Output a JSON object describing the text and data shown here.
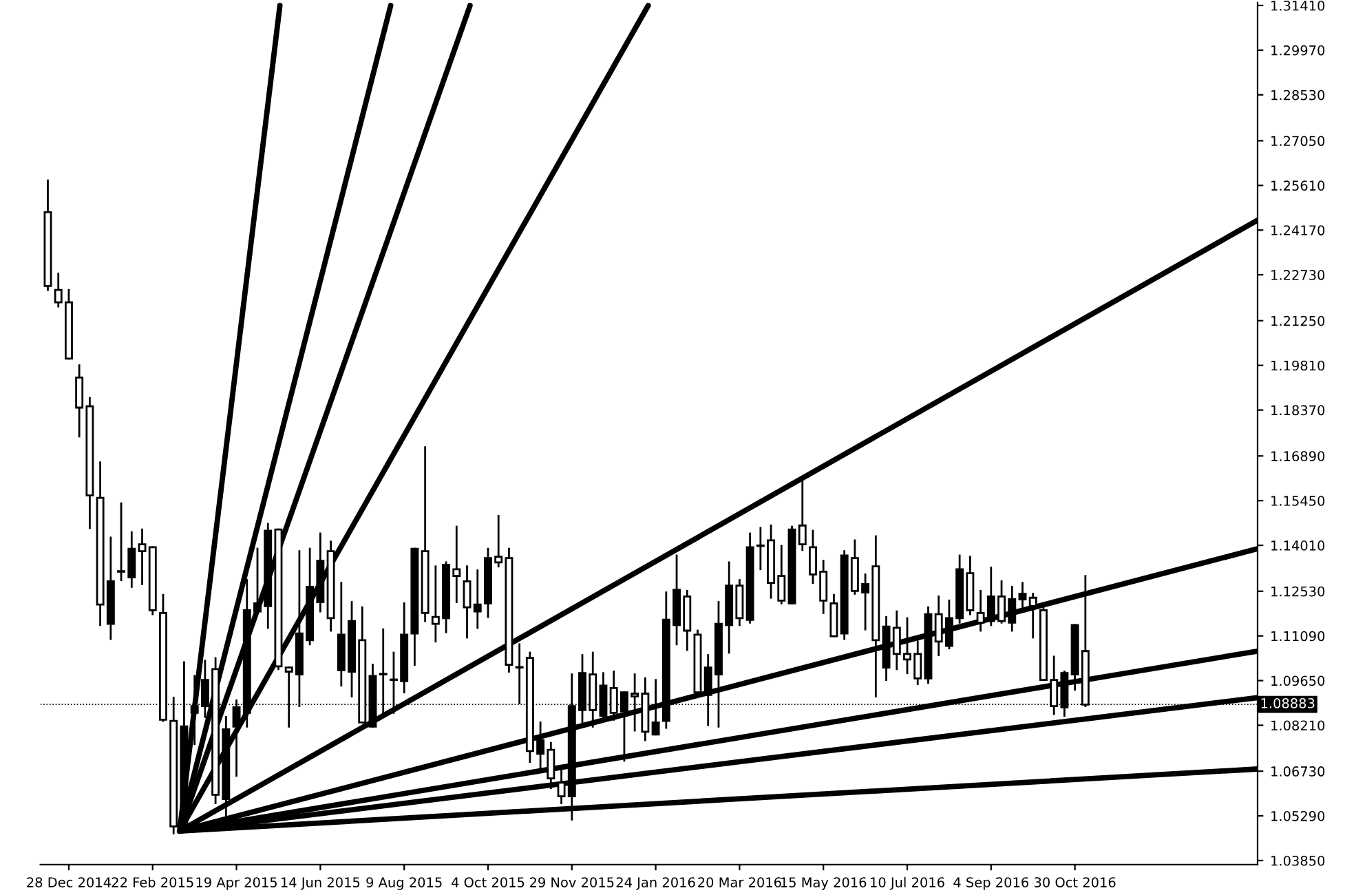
{
  "chart_data": {
    "type": "candlestick",
    "color": "#000000",
    "x": [
      "2014-12-14",
      "2014-12-21",
      "2014-12-28",
      "2015-01-04",
      "2015-01-11",
      "2015-01-18",
      "2015-01-25",
      "2015-02-01",
      "2015-02-08",
      "2015-02-15",
      "2015-02-22",
      "2015-03-01",
      "2015-03-08",
      "2015-03-15",
      "2015-03-22",
      "2015-03-29",
      "2015-04-05",
      "2015-04-12",
      "2015-04-19",
      "2015-04-26",
      "2015-05-03",
      "2015-05-10",
      "2015-05-17",
      "2015-05-24",
      "2015-05-31",
      "2015-06-07",
      "2015-06-14",
      "2015-06-21",
      "2015-06-28",
      "2015-07-05",
      "2015-07-12",
      "2015-07-19",
      "2015-07-26",
      "2015-08-02",
      "2015-08-09",
      "2015-08-16",
      "2015-08-23",
      "2015-08-30",
      "2015-09-06",
      "2015-09-13",
      "2015-09-20",
      "2015-09-27",
      "2015-10-04",
      "2015-10-11",
      "2015-10-18",
      "2015-10-25",
      "2015-11-01",
      "2015-11-08",
      "2015-11-15",
      "2015-11-22",
      "2015-11-29",
      "2015-12-06",
      "2015-12-13",
      "2015-12-20",
      "2015-12-27",
      "2016-01-03",
      "2016-01-10",
      "2016-01-17",
      "2016-01-24",
      "2016-01-31",
      "2016-02-07",
      "2016-02-14",
      "2016-02-21",
      "2016-02-28",
      "2016-03-06",
      "2016-03-13",
      "2016-03-20",
      "2016-03-27",
      "2016-04-03",
      "2016-04-10",
      "2016-04-17",
      "2016-04-24",
      "2016-05-01",
      "2016-05-08",
      "2016-05-15",
      "2016-05-22",
      "2016-05-29",
      "2016-06-05",
      "2016-06-12",
      "2016-06-19",
      "2016-06-26",
      "2016-07-03",
      "2016-07-10",
      "2016-07-17",
      "2016-07-24",
      "2016-07-31",
      "2016-08-07",
      "2016-08-14",
      "2016-08-21",
      "2016-08-28",
      "2016-09-04",
      "2016-09-11",
      "2016-09-18",
      "2016-09-25",
      "2016-10-02",
      "2016-10-09",
      "2016-10-16",
      "2016-10-23",
      "2016-10-30",
      "2016-11-06"
    ],
    "ohlc": [
      [
        1.2475,
        1.2577,
        1.2224,
        1.2237
      ],
      [
        1.2224,
        1.2277,
        1.2171,
        1.2184
      ],
      [
        1.2184,
        1.2224,
        1.2003,
        1.2003
      ],
      [
        1.1942,
        1.1981,
        1.1752,
        1.1845
      ],
      [
        1.1849,
        1.1876,
        1.1457,
        1.1562
      ],
      [
        1.1554,
        1.1668,
        1.1144,
        1.121
      ],
      [
        1.1148,
        1.1426,
        1.1099,
        1.1285
      ],
      [
        1.1316,
        1.1536,
        1.1289,
        1.1316
      ],
      [
        1.1298,
        1.1443,
        1.1267,
        1.139
      ],
      [
        1.1404,
        1.1452,
        1.1276,
        1.1382
      ],
      [
        1.1395,
        1.1395,
        1.1179,
        1.1192
      ],
      [
        1.1183,
        1.1241,
        1.0835,
        1.0839
      ],
      [
        1.0835,
        1.091,
        1.0473,
        1.0495
      ],
      [
        1.0508,
        1.1024,
        1.0495,
        1.0817
      ],
      [
        1.0861,
        1.098,
        1.076,
        1.0883
      ],
      [
        1.0883,
        1.1029,
        1.0848,
        1.0967
      ],
      [
        1.1002,
        1.1037,
        1.057,
        1.0597
      ],
      [
        1.0583,
        1.0848,
        1.0526,
        1.0808
      ],
      [
        1.0817,
        1.0901,
        1.0658,
        1.0879
      ],
      [
        1.0861,
        1.1289,
        1.0817,
        1.1192
      ],
      [
        1.1188,
        1.139,
        1.1188,
        1.1214
      ],
      [
        1.1205,
        1.147,
        1.1135,
        1.1448
      ],
      [
        1.1452,
        1.1452,
        1.1002,
        1.1011
      ],
      [
        1.1007,
        1.1007,
        1.0817,
        1.0994
      ],
      [
        1.0985,
        1.1382,
        1.0883,
        1.1117
      ],
      [
        1.1095,
        1.139,
        1.1082,
        1.1267
      ],
      [
        1.1218,
        1.1439,
        1.1188,
        1.1351
      ],
      [
        1.1382,
        1.1413,
        1.1126,
        1.1166
      ],
      [
        1.0998,
        1.128,
        1.0949,
        1.1113
      ],
      [
        1.0994,
        1.1218,
        1.0914,
        1.1157
      ],
      [
        1.1095,
        1.1201,
        1.083,
        1.083
      ],
      [
        1.0817,
        1.1016,
        1.0817,
        1.098
      ],
      [
        1.0985,
        1.113,
        1.0848,
        1.0985
      ],
      [
        1.0967,
        1.1055,
        1.0861,
        1.0967
      ],
      [
        1.0963,
        1.1214,
        1.0927,
        1.1113
      ],
      [
        1.1117,
        1.139,
        1.1016,
        1.139
      ],
      [
        1.1382,
        1.1717,
        1.1157,
        1.1183
      ],
      [
        1.117,
        1.1333,
        1.1091,
        1.1148
      ],
      [
        1.1166,
        1.1346,
        1.1121,
        1.1338
      ],
      [
        1.1324,
        1.1461,
        1.1218,
        1.1302
      ],
      [
        1.1285,
        1.1333,
        1.1104,
        1.1201
      ],
      [
        1.1188,
        1.132,
        1.1135,
        1.121
      ],
      [
        1.1214,
        1.139,
        1.117,
        1.136
      ],
      [
        1.1364,
        1.1496,
        1.1333,
        1.1346
      ],
      [
        1.136,
        1.139,
        1.0994,
        1.1016
      ],
      [
        1.1007,
        1.1082,
        1.0892,
        1.1007
      ],
      [
        1.1038,
        1.1055,
        1.0703,
        1.0738
      ],
      [
        1.0729,
        1.083,
        1.0672,
        1.0773
      ],
      [
        1.0742,
        1.0764,
        1.0619,
        1.065
      ],
      [
        1.0636,
        1.0685,
        1.057,
        1.0592
      ],
      [
        1.0592,
        1.0985,
        1.0517,
        1.0883
      ],
      [
        1.087,
        1.1047,
        1.0817,
        1.0989
      ],
      [
        1.0985,
        1.1055,
        1.0817,
        1.087
      ],
      [
        1.0852,
        1.0989,
        1.0839,
        1.0949
      ],
      [
        1.0941,
        1.0994,
        1.0839,
        1.0861
      ],
      [
        1.0866,
        1.0927,
        1.0707,
        1.0927
      ],
      [
        1.0923,
        1.0985,
        1.0804,
        1.0914
      ],
      [
        1.0923,
        1.0972,
        1.0773,
        1.08
      ],
      [
        1.0791,
        1.0967,
        1.0791,
        1.083
      ],
      [
        1.0835,
        1.1249,
        1.0813,
        1.1161
      ],
      [
        1.1144,
        1.1368,
        1.1082,
        1.1258
      ],
      [
        1.1236,
        1.1254,
        1.1064,
        1.1126
      ],
      [
        1.1113,
        1.1126,
        1.0914,
        1.0927
      ],
      [
        1.0919,
        1.1047,
        1.0822,
        1.1007
      ],
      [
        1.0985,
        1.1218,
        1.0817,
        1.1148
      ],
      [
        1.1144,
        1.1346,
        1.1055,
        1.1271
      ],
      [
        1.1271,
        1.1289,
        1.1144,
        1.1166
      ],
      [
        1.1161,
        1.1439,
        1.1152,
        1.1395
      ],
      [
        1.1399,
        1.1457,
        1.1324,
        1.1399
      ],
      [
        1.1417,
        1.1465,
        1.1232,
        1.128
      ],
      [
        1.1302,
        1.1399,
        1.1214,
        1.1223
      ],
      [
        1.1214,
        1.1461,
        1.1214,
        1.1452
      ],
      [
        1.1465,
        1.1611,
        1.1386,
        1.1404
      ],
      [
        1.1395,
        1.1448,
        1.128,
        1.1307
      ],
      [
        1.1316,
        1.1351,
        1.1183,
        1.1223
      ],
      [
        1.1214,
        1.1241,
        1.1108,
        1.1108
      ],
      [
        1.1117,
        1.1382,
        1.1099,
        1.1368
      ],
      [
        1.136,
        1.1417,
        1.1245,
        1.1254
      ],
      [
        1.1249,
        1.1307,
        1.113,
        1.1276
      ],
      [
        1.1333,
        1.143,
        1.0914,
        1.1095
      ],
      [
        1.1007,
        1.117,
        1.0967,
        1.1139
      ],
      [
        1.1135,
        1.1188,
        1.1002,
        1.1051
      ],
      [
        1.1051,
        1.1166,
        1.0989,
        1.1033
      ],
      [
        1.1051,
        1.1091,
        1.0954,
        1.0972
      ],
      [
        1.0972,
        1.1201,
        1.0958,
        1.1179
      ],
      [
        1.1179,
        1.1236,
        1.1047,
        1.1091
      ],
      [
        1.1077,
        1.1223,
        1.1069,
        1.1166
      ],
      [
        1.1166,
        1.1368,
        1.1152,
        1.1324
      ],
      [
        1.1311,
        1.1364,
        1.1179,
        1.1192
      ],
      [
        1.1183,
        1.1254,
        1.1126,
        1.1152
      ],
      [
        1.1157,
        1.1329,
        1.1144,
        1.1236
      ],
      [
        1.1236,
        1.1285,
        1.1152,
        1.1157
      ],
      [
        1.1152,
        1.1267,
        1.1126,
        1.1227
      ],
      [
        1.1227,
        1.128,
        1.1188,
        1.1245
      ],
      [
        1.1232,
        1.1245,
        1.1104,
        1.1205
      ],
      [
        1.1192,
        1.1201,
        1.0967,
        1.0967
      ],
      [
        1.0967,
        1.1042,
        1.0857,
        1.0883
      ],
      [
        1.0879,
        1.0994,
        1.0852,
        1.0989
      ],
      [
        1.0985,
        1.1144,
        1.0936,
        1.1144
      ],
      [
        1.106,
        1.1302,
        1.0883,
        1.0888
      ]
    ],
    "series": [
      {
        "type": "line",
        "color": "#000000",
        "x": [
          "2015-03-12",
          "2015-05-18"
        ],
        "values": [
          1.048,
          1.3141
        ]
      },
      {
        "type": "line",
        "color": "#000000",
        "x": [
          "2015-03-12",
          "2015-07-31"
        ],
        "values": [
          1.048,
          1.3141
        ]
      },
      {
        "type": "line",
        "color": "#000000",
        "x": [
          "2015-03-12",
          "2015-09-22"
        ],
        "values": [
          1.048,
          1.3141
        ]
      },
      {
        "type": "line",
        "color": "#000000",
        "x": [
          "2015-03-12",
          "2016-01-19"
        ],
        "values": [
          1.048,
          1.3141
        ]
      },
      {
        "type": "line",
        "color": "#000000",
        "x": [
          "2015-03-12",
          "2017-03-01"
        ],
        "values": [
          1.048,
          1.2449
        ]
      },
      {
        "type": "line",
        "color": "#000000",
        "x": [
          "2015-03-12",
          "2017-03-01"
        ],
        "values": [
          1.048,
          1.139
        ]
      },
      {
        "type": "line",
        "color": "#000000",
        "x": [
          "2015-03-12",
          "2017-03-01"
        ],
        "values": [
          1.048,
          1.106
        ]
      },
      {
        "type": "line",
        "color": "#000000",
        "x": [
          "2015-03-12",
          "2017-03-01"
        ],
        "values": [
          1.048,
          1.091
        ]
      },
      {
        "type": "line",
        "color": "#000000",
        "x": [
          "2015-03-12",
          "2017-03-01"
        ],
        "values": [
          1.048,
          1.068
        ]
      }
    ],
    "ref_lines": [
      {
        "axis": "y",
        "value": 1.08883,
        "label": "1.08883"
      }
    ],
    "xlim": [
      "2014-12-09",
      "2017-03-01"
    ],
    "xticks": [
      {
        "value": "2014-12-28",
        "label": "28 Dec 2014"
      },
      {
        "value": "2015-02-22",
        "label": "22 Feb 2015"
      },
      {
        "value": "2015-04-19",
        "label": "19 Apr 2015"
      },
      {
        "value": "2015-06-14",
        "label": "14 Jun 2015"
      },
      {
        "value": "2015-08-09",
        "label": "9 Aug 2015"
      },
      {
        "value": "2015-10-04",
        "label": "4 Oct 2015"
      },
      {
        "value": "2015-11-29",
        "label": "29 Nov 2015"
      },
      {
        "value": "2016-01-24",
        "label": "24 Jan 2016"
      },
      {
        "value": "2016-03-20",
        "label": "20 Mar 2016"
      },
      {
        "value": "2016-05-15",
        "label": "15 May 2016"
      },
      {
        "value": "2016-07-10",
        "label": "10 Jul 2016"
      },
      {
        "value": "2016-09-04",
        "label": "4 Sep 2016"
      },
      {
        "value": "2016-10-30",
        "label": "30 Oct 2016"
      }
    ],
    "ylim": [
      1.0372,
      1.315
    ],
    "yticks": [
      {
        "value": 1.0385,
        "label": "1.03850"
      },
      {
        "value": 1.0529,
        "label": "1.05290"
      },
      {
        "value": 1.0673,
        "label": "1.06730"
      },
      {
        "value": 1.0821,
        "label": "1.08210"
      },
      {
        "value": 1.0965,
        "label": "1.09650"
      },
      {
        "value": 1.1109,
        "label": "1.11090"
      },
      {
        "value": 1.1253,
        "label": "1.12530"
      },
      {
        "value": 1.1401,
        "label": "1.14010"
      },
      {
        "value": 1.1545,
        "label": "1.15450"
      },
      {
        "value": 1.1689,
        "label": "1.16890"
      },
      {
        "value": 1.1837,
        "label": "1.18370"
      },
      {
        "value": 1.1981,
        "label": "1.19810"
      },
      {
        "value": 1.2125,
        "label": "1.21250"
      },
      {
        "value": 1.2273,
        "label": "1.22730"
      },
      {
        "value": 1.2417,
        "label": "1.24170"
      },
      {
        "value": 1.2561,
        "label": "1.25610"
      },
      {
        "value": 1.2705,
        "label": "1.27050"
      },
      {
        "value": 1.2853,
        "label": "1.28530"
      },
      {
        "value": 1.2997,
        "label": "1.29970"
      },
      {
        "value": 1.3141,
        "label": "1.31410"
      }
    ],
    "grid": false,
    "legend": false
  }
}
